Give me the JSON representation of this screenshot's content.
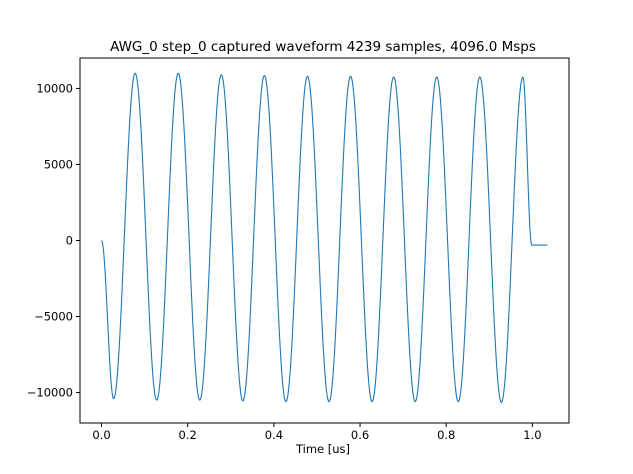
{
  "chart_data": {
    "type": "line",
    "title": "AWG_0 step_0 captured waveform 4239 samples, 4096.0 Msps",
    "xlabel": "Time [us]",
    "ylabel": "",
    "xlim": [
      -0.05,
      1.085
    ],
    "ylim": [
      -12000,
      12000
    ],
    "xticks": [
      0.0,
      0.2,
      0.4,
      0.6,
      0.8,
      1.0
    ],
    "xtick_labels": [
      "0.0",
      "0.2",
      "0.4",
      "0.6",
      "0.8",
      "1.0"
    ],
    "yticks": [
      -10000,
      -5000,
      0,
      5000,
      10000
    ],
    "ytick_labels": [
      "−10000",
      "−5000",
      "0",
      "5000",
      "10000"
    ],
    "grid": false,
    "legend": "none",
    "series": [
      {
        "name": "captured waveform",
        "color": "#1f77b4",
        "samples": 4239,
        "sample_rate_msps": 4096.0,
        "frequency_mhz": 10,
        "start_value": 0,
        "start_time_us": 0.0,
        "peaks": [
          {
            "t": 0.078,
            "v": 11000
          },
          {
            "t": 0.178,
            "v": 11000
          },
          {
            "t": 0.278,
            "v": 10900
          },
          {
            "t": 0.378,
            "v": 10850
          },
          {
            "t": 0.478,
            "v": 10800
          },
          {
            "t": 0.578,
            "v": 10800
          },
          {
            "t": 0.678,
            "v": 10750
          },
          {
            "t": 0.778,
            "v": 10750
          },
          {
            "t": 0.878,
            "v": 10750
          },
          {
            "t": 0.978,
            "v": 10750
          }
        ],
        "troughs": [
          {
            "t": 0.028,
            "v": -10400
          },
          {
            "t": 0.128,
            "v": -10500
          },
          {
            "t": 0.228,
            "v": -10500
          },
          {
            "t": 0.328,
            "v": -10550
          },
          {
            "t": 0.428,
            "v": -10600
          },
          {
            "t": 0.528,
            "v": -10600
          },
          {
            "t": 0.628,
            "v": -10600
          },
          {
            "t": 0.728,
            "v": -10600
          },
          {
            "t": 0.828,
            "v": -10600
          },
          {
            "t": 0.928,
            "v": -10650
          }
        ],
        "tail": {
          "t_start": 0.9985,
          "t_end": 1.035,
          "v": -300
        }
      }
    ]
  }
}
